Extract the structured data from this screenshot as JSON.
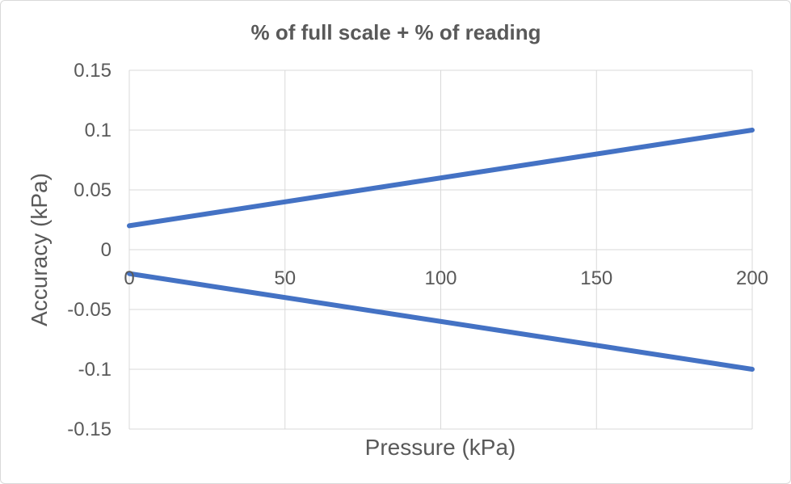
{
  "chart_data": {
    "type": "line",
    "title": "% of full scale + % of reading",
    "xlabel": "Pressure (kPa)",
    "ylabel": "Accuracy (kPa)",
    "xlim": [
      0,
      200
    ],
    "ylim": [
      -0.15,
      0.15
    ],
    "x_ticks": [
      "0",
      "50",
      "100",
      "150",
      "200"
    ],
    "y_ticks": [
      "0.15",
      "0.1",
      "0.05",
      "0",
      "-0.05",
      "-0.1",
      "-0.15"
    ],
    "grid": true,
    "legend": "none",
    "series": [
      {
        "x": [
          0,
          200
        ],
        "values": [
          0.02,
          0.1
        ],
        "color": "#4472C4"
      },
      {
        "x": [
          0,
          200
        ],
        "values": [
          -0.02,
          -0.1
        ],
        "color": "#4472C4"
      }
    ]
  }
}
